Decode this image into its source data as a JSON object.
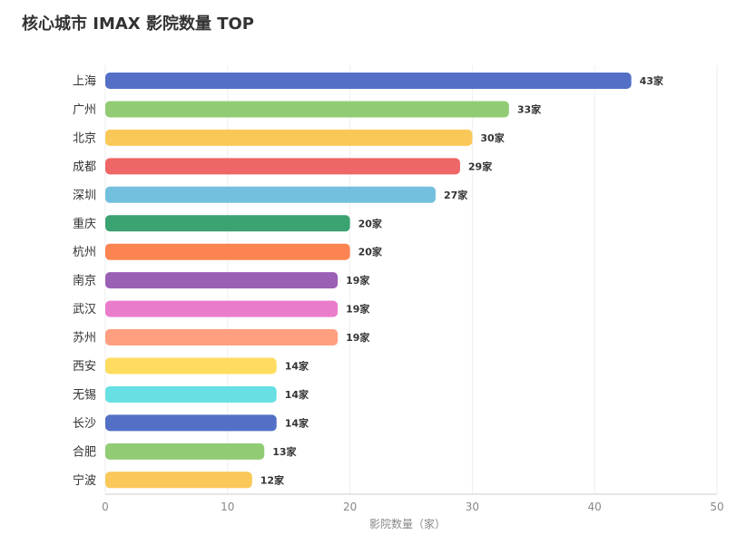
{
  "chart_data": {
    "type": "bar",
    "orientation": "horizontal",
    "title": "核心城市 IMAX 影院数量 TOP",
    "xlabel": "影院数量（家）",
    "ylabel": "",
    "categories": [
      "上海",
      "广州",
      "北京",
      "成都",
      "深圳",
      "重庆",
      "杭州",
      "南京",
      "武汉",
      "苏州",
      "西安",
      "无锡",
      "长沙",
      "合肥",
      "宁波"
    ],
    "values": [
      43,
      33,
      30,
      29,
      27,
      20,
      20,
      19,
      19,
      19,
      14,
      14,
      14,
      13,
      12
    ],
    "value_suffix": "家",
    "xlim": [
      0,
      50
    ],
    "x_ticks": [
      0,
      10,
      20,
      30,
      40,
      50
    ],
    "grid": true,
    "colors": [
      "#5470c6",
      "#91cc75",
      "#fac858",
      "#ee6666",
      "#73c0de",
      "#3ba272",
      "#fc8452",
      "#9a60b4",
      "#ea7ccc",
      "#ff9f7f",
      "#ffdc60",
      "#67e0e3",
      "#5470c6",
      "#91cc75",
      "#fac858"
    ]
  }
}
